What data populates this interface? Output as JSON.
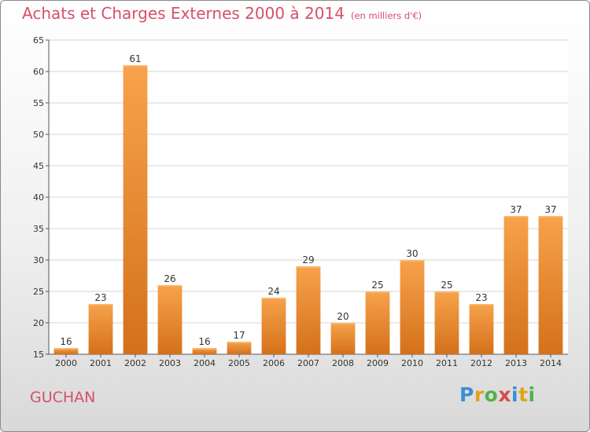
{
  "title": "Achats et Charges Externes 2000 à 2014",
  "subtitle": "(en milliers d'€)",
  "location": "GUCHAN",
  "logo": {
    "letters": [
      "P",
      "r",
      "o",
      "x",
      "i",
      "t",
      "i"
    ],
    "colors": [
      "#3a8ed8",
      "#e2a21a",
      "#53b04a",
      "#d84a4a",
      "#3a8ed8",
      "#e2a21a",
      "#53b04a"
    ]
  },
  "colors": {
    "bar_light": "#f7a24c",
    "bar_dark": "#d4711a",
    "text_accent": "#d6506a",
    "grid": "#d4d4d4"
  },
  "chart_data": {
    "type": "bar",
    "categories": [
      "2000",
      "2001",
      "2002",
      "2003",
      "2004",
      "2005",
      "2006",
      "2007",
      "2008",
      "2009",
      "2010",
      "2011",
      "2012",
      "2013",
      "2014"
    ],
    "values": [
      16,
      23,
      61,
      26,
      16,
      17,
      24,
      29,
      20,
      25,
      30,
      25,
      23,
      37,
      37
    ],
    "ylim": [
      15,
      65
    ],
    "yticks": [
      15,
      20,
      25,
      30,
      35,
      40,
      45,
      50,
      55,
      60,
      65
    ],
    "grid": true
  }
}
